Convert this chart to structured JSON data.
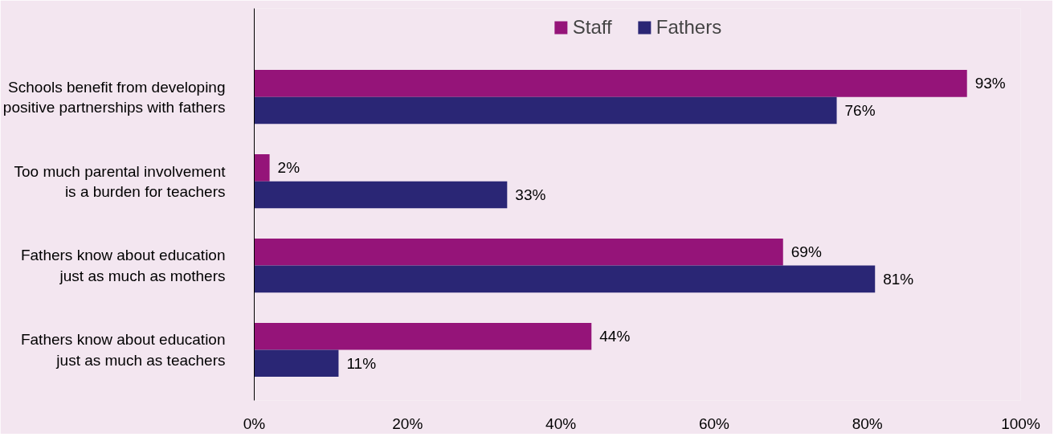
{
  "chart_data": {
    "type": "bar",
    "orientation": "horizontal",
    "categories": [
      "Schools benefit from developing positive partnerships with fathers",
      "Too much parental involvement is a burden for teachers",
      "Fathers know about education just as much as mothers",
      "Fathers know about education just as much as teachers"
    ],
    "series": [
      {
        "name": "Staff",
        "color": "#951479",
        "values": [
          93,
          2,
          69,
          44
        ],
        "value_labels": [
          "93%",
          "2%",
          "69%",
          "44%"
        ]
      },
      {
        "name": "Fathers",
        "color": "#2a2675",
        "values": [
          76,
          33,
          81,
          11
        ],
        "value_labels": [
          "76%",
          "33%",
          "81%",
          "11%"
        ]
      }
    ],
    "xlim": [
      0,
      100
    ],
    "xticks": [
      {
        "value": 0,
        "label": "0%"
      },
      {
        "value": 20,
        "label": "20%"
      },
      {
        "value": 40,
        "label": "40%"
      },
      {
        "value": 60,
        "label": "60%"
      },
      {
        "value": 80,
        "label": "80%"
      },
      {
        "value": 100,
        "label": "100%"
      }
    ],
    "legend": "top"
  }
}
